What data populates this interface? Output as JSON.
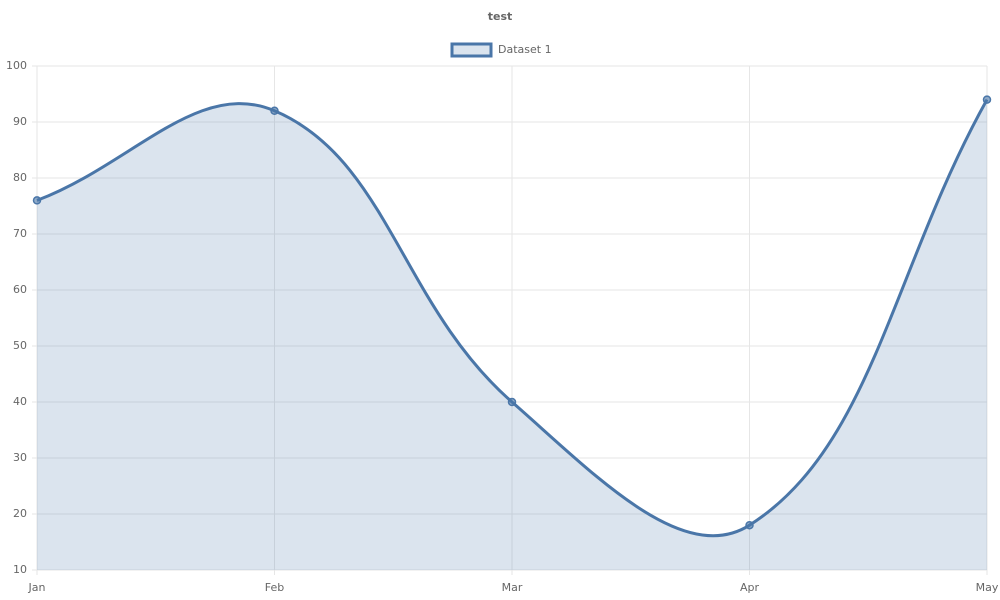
{
  "chart_data": {
    "type": "line",
    "title": "test",
    "categories": [
      "Jan",
      "Feb",
      "Mar",
      "Apr",
      "May"
    ],
    "series": [
      {
        "name": "Dataset 1",
        "color": "#4a76a8",
        "values": [
          76,
          92,
          40,
          18,
          94
        ]
      }
    ],
    "fill": true,
    "ylim": [
      10,
      100
    ],
    "yticks": [
      10,
      20,
      30,
      40,
      50,
      60,
      70,
      80,
      90,
      100
    ],
    "grid": true,
    "legend": "top"
  }
}
